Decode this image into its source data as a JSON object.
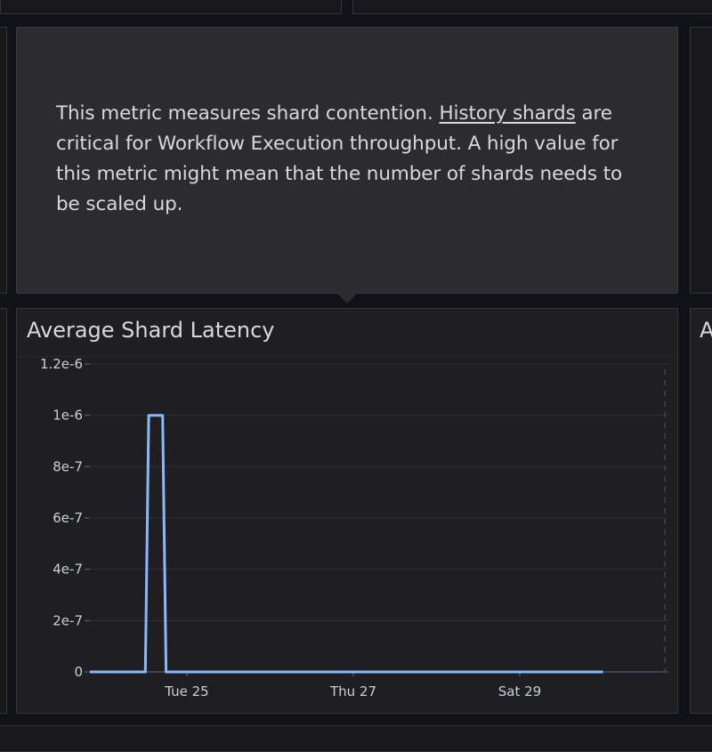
{
  "tooltip": {
    "text_before": "This metric measures shard contention. ",
    "link": "History shards",
    "text_after": " are critical for Workflow Execution throughput. A high value for this metric might mean that the number of shards needs to be scaled up."
  },
  "panel": {
    "title": "Average Shard Latency",
    "right_title_partial": "A"
  },
  "chart_data": {
    "type": "line",
    "title": "Average Shard Latency",
    "ylim": [
      0,
      1.2e-06
    ],
    "y_ticks": [
      "1.2e-6",
      "1e-6",
      "8e-7",
      "6e-7",
      "4e-7",
      "2e-7",
      "0"
    ],
    "x_ticks": [
      "Tue 25",
      "Thu 27",
      "Sat 29"
    ],
    "grid": true,
    "series": [
      {
        "color": "#8ab8ff",
        "x": [
          "Mon 24 12:00",
          "Mon 24 13:00",
          "Mon 24 17:00",
          "Mon 24 18:00",
          "Sat 30 00:00"
        ],
        "values": [
          0,
          1e-06,
          1e-06,
          0,
          0
        ]
      }
    ]
  }
}
